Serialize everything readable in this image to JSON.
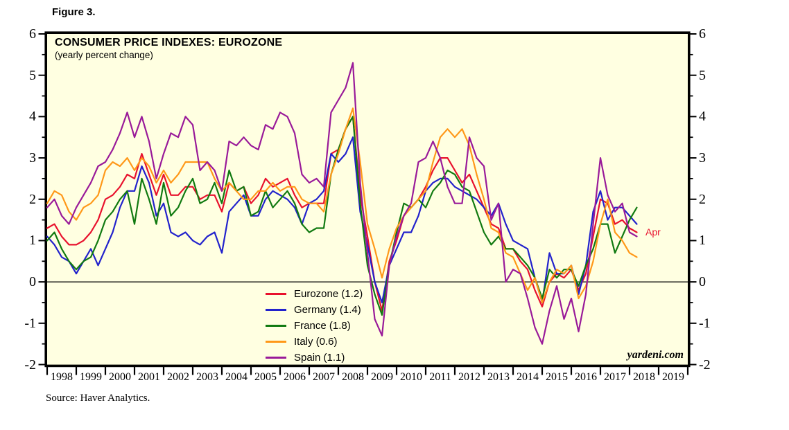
{
  "figure_label": "Figure 3.",
  "chart": {
    "title": "CONSUMER PRICE INDEXES: EUROZONE",
    "subtitle": "(yearly percent change)"
  },
  "annotations": {
    "last_point_label": "Apr",
    "last_point_label_color": "#e8112d",
    "watermark": "yardeni.com"
  },
  "source": "Source: Haver Analytics.",
  "colors": {
    "plot_background": "#ffffe1",
    "frame": "#000000",
    "zero_line": "#000000"
  },
  "chart_data": {
    "type": "line",
    "title": "CONSUMER PRICE INDEXES: EUROZONE",
    "subtitle": "(yearly percent change)",
    "x_unit": "year (quarterly samples, Q1 1998 - Apr 2018)",
    "x_start": 1998,
    "x_step": 0.25,
    "x_axis": {
      "range": [
        1998,
        2020
      ],
      "year_labels": [
        1998,
        1999,
        2000,
        2001,
        2002,
        2003,
        2004,
        2005,
        2006,
        2007,
        2008,
        2009,
        2010,
        2011,
        2012,
        2013,
        2014,
        2015,
        2016,
        2017,
        2018,
        2019
      ]
    },
    "y_axis": {
      "range": [
        -2,
        6
      ],
      "major_ticks": [
        -2,
        -1,
        0,
        1,
        2,
        3,
        4,
        5,
        6
      ],
      "minor_step": 0.5,
      "zero_line": true
    },
    "legend_position": "inside-bottom-center",
    "series": [
      {
        "name": "Eurozone",
        "legend_label": "Eurozone (1.2)",
        "latest_value": 1.2,
        "color": "#e8112d",
        "values": [
          1.3,
          1.4,
          1.1,
          0.9,
          0.9,
          1.0,
          1.2,
          1.5,
          2.0,
          2.1,
          2.3,
          2.6,
          2.5,
          3.1,
          2.6,
          2.1,
          2.6,
          2.1,
          2.1,
          2.3,
          2.3,
          2.0,
          2.1,
          2.1,
          1.7,
          2.4,
          2.2,
          2.3,
          1.9,
          2.1,
          2.5,
          2.3,
          2.4,
          2.5,
          2.1,
          1.8,
          1.9,
          1.9,
          1.9,
          3.1,
          3.2,
          3.7,
          4.0,
          2.1,
          1.1,
          0.0,
          -0.7,
          0.5,
          1.0,
          1.6,
          1.8,
          2.0,
          2.3,
          2.7,
          3.0,
          3.0,
          2.7,
          2.4,
          2.6,
          2.2,
          1.8,
          1.4,
          1.3,
          0.8,
          0.8,
          0.5,
          0.3,
          -0.2,
          -0.6,
          0.0,
          0.2,
          0.1,
          0.3,
          -0.2,
          0.2,
          1.1,
          2.0,
          1.9,
          1.4,
          1.5,
          1.3,
          1.2
        ]
      },
      {
        "name": "Germany",
        "legend_label": "Germany (1.4)",
        "latest_value": 1.4,
        "color": "#2222cc",
        "values": [
          1.1,
          0.9,
          0.6,
          0.5,
          0.2,
          0.5,
          0.8,
          0.4,
          0.8,
          1.2,
          1.8,
          2.2,
          2.2,
          2.8,
          2.4,
          1.6,
          1.9,
          1.2,
          1.1,
          1.2,
          1.0,
          0.9,
          1.1,
          1.2,
          0.7,
          1.7,
          1.9,
          2.1,
          1.6,
          1.6,
          2.0,
          2.2,
          2.1,
          2.0,
          1.8,
          1.4,
          1.9,
          2.0,
          2.2,
          3.1,
          2.9,
          3.1,
          3.5,
          1.7,
          0.9,
          0.0,
          -0.5,
          0.4,
          0.8,
          1.2,
          1.2,
          1.6,
          2.2,
          2.4,
          2.5,
          2.5,
          2.3,
          2.2,
          2.1,
          2.0,
          1.8,
          1.6,
          1.9,
          1.4,
          1.0,
          0.9,
          0.8,
          0.1,
          -0.5,
          0.7,
          0.2,
          0.2,
          0.4,
          -0.3,
          0.4,
          1.7,
          2.2,
          1.5,
          1.8,
          1.8,
          1.6,
          1.4
        ]
      },
      {
        "name": "France",
        "legend_label": "France (1.8)",
        "latest_value": 1.8,
        "color": "#117a11",
        "values": [
          1.0,
          1.2,
          0.8,
          0.5,
          0.3,
          0.5,
          0.6,
          1.0,
          1.5,
          1.7,
          2.0,
          2.2,
          1.4,
          2.5,
          2.0,
          1.4,
          2.4,
          1.6,
          1.8,
          2.2,
          2.5,
          1.9,
          2.0,
          2.4,
          1.9,
          2.7,
          2.2,
          2.3,
          1.6,
          1.7,
          2.2,
          1.8,
          2.0,
          2.2,
          1.9,
          1.4,
          1.2,
          1.3,
          1.3,
          2.6,
          3.2,
          3.7,
          4.0,
          1.9,
          0.4,
          -0.3,
          -0.8,
          0.4,
          1.2,
          1.9,
          1.8,
          2.0,
          1.8,
          2.2,
          2.4,
          2.7,
          2.6,
          2.3,
          2.2,
          1.7,
          1.2,
          0.9,
          1.1,
          0.8,
          0.8,
          0.6,
          0.4,
          0.1,
          -0.4,
          0.3,
          0.1,
          0.3,
          0.3,
          -0.1,
          0.4,
          0.8,
          1.4,
          1.4,
          0.7,
          1.1,
          1.5,
          1.8
        ]
      },
      {
        "name": "Italy",
        "legend_label": "Italy (0.6)",
        "latest_value": 0.6,
        "color": "#ff9818",
        "values": [
          1.9,
          2.2,
          2.1,
          1.7,
          1.5,
          1.8,
          1.9,
          2.1,
          2.7,
          2.9,
          2.8,
          3.0,
          2.7,
          3.0,
          2.8,
          2.4,
          2.7,
          2.4,
          2.6,
          2.9,
          2.9,
          2.9,
          2.9,
          2.5,
          2.2,
          2.4,
          2.2,
          2.0,
          2.0,
          2.2,
          2.2,
          2.4,
          2.2,
          2.3,
          2.3,
          2.0,
          1.9,
          1.9,
          1.7,
          2.6,
          3.1,
          3.7,
          4.2,
          2.9,
          1.4,
          0.8,
          0.1,
          0.8,
          1.3,
          1.6,
          1.8,
          2.0,
          2.2,
          2.9,
          3.5,
          3.7,
          3.5,
          3.7,
          3.3,
          2.6,
          2.0,
          1.3,
          1.2,
          0.7,
          0.6,
          0.2,
          -0.2,
          0.1,
          -0.5,
          0.0,
          0.3,
          0.2,
          0.4,
          -0.4,
          -0.1,
          0.5,
          1.4,
          2.0,
          1.2,
          1.0,
          0.7,
          0.6
        ]
      },
      {
        "name": "Spain",
        "legend_label": "Spain (1.1)",
        "latest_value": 1.1,
        "color": "#991a99",
        "values": [
          1.8,
          2.0,
          1.6,
          1.4,
          1.8,
          2.1,
          2.4,
          2.8,
          2.9,
          3.2,
          3.6,
          4.1,
          3.5,
          4.0,
          3.4,
          2.5,
          3.1,
          3.6,
          3.5,
          4.0,
          3.8,
          2.7,
          2.9,
          2.7,
          2.2,
          3.4,
          3.3,
          3.5,
          3.3,
          3.2,
          3.8,
          3.7,
          4.1,
          4.0,
          3.6,
          2.6,
          2.4,
          2.5,
          2.3,
          4.1,
          4.4,
          4.7,
          5.3,
          2.4,
          0.7,
          -0.9,
          -1.3,
          0.4,
          1.1,
          1.6,
          1.9,
          2.9,
          3.0,
          3.4,
          3.0,
          2.3,
          1.9,
          1.9,
          3.5,
          3.0,
          2.8,
          1.5,
          1.9,
          0.0,
          0.3,
          0.2,
          -0.4,
          -1.1,
          -1.5,
          -0.7,
          -0.1,
          -0.9,
          -0.4,
          -1.2,
          -0.3,
          1.4,
          3.0,
          2.1,
          1.7,
          1.9,
          1.2,
          1.1
        ]
      }
    ]
  }
}
